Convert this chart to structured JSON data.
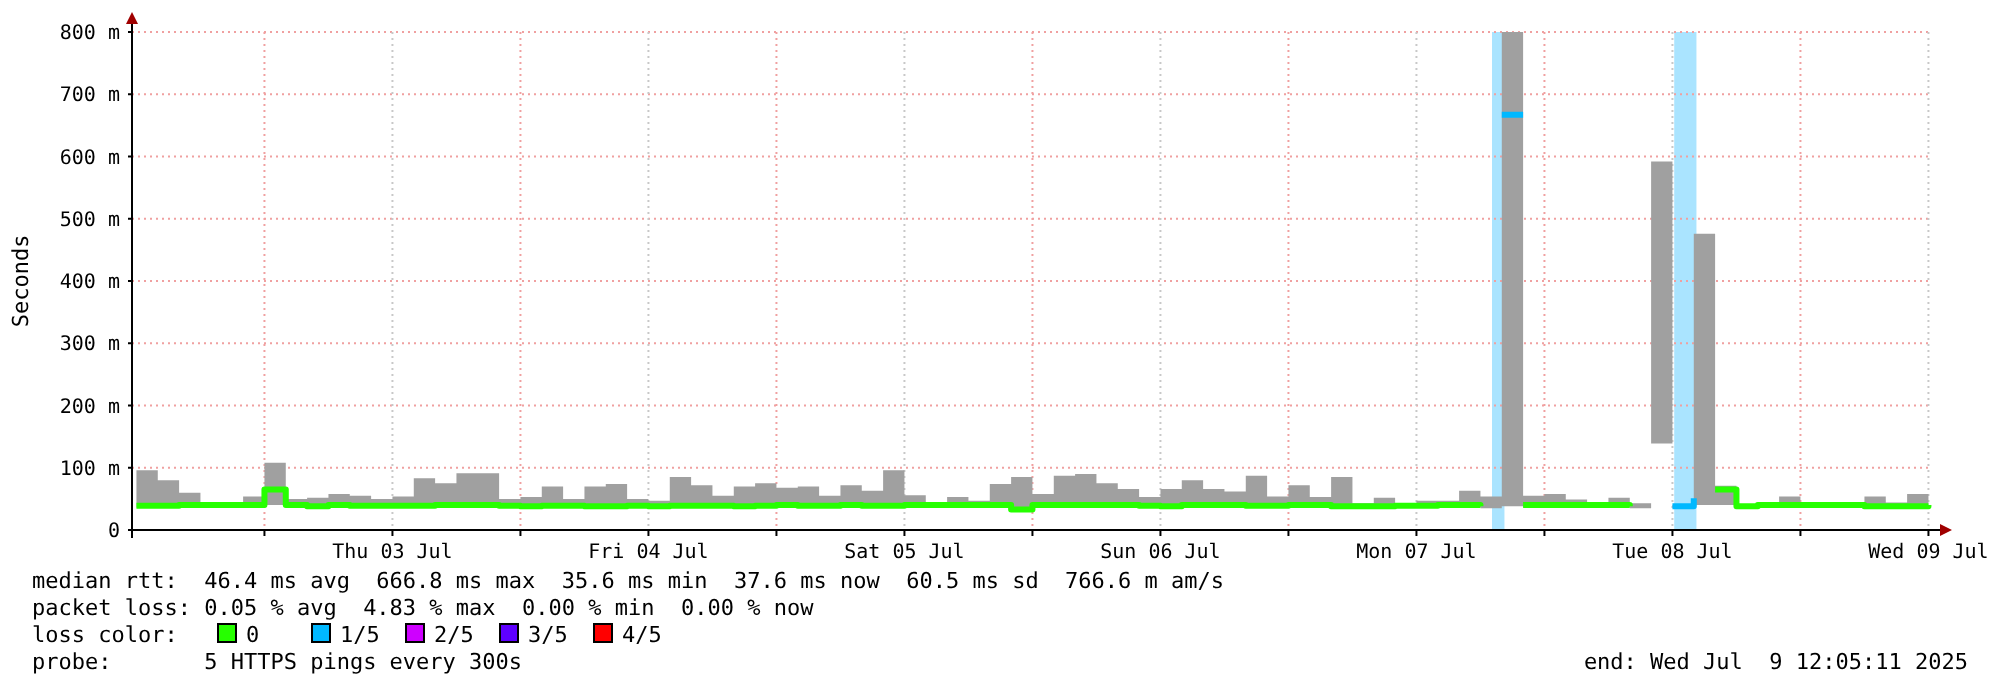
{
  "chart_data": {
    "type": "step",
    "ylabel": "Seconds",
    "xlim": [
      "2025-07-02T11:35",
      "2025-07-09T12:20"
    ],
    "xticks": [
      {
        "value": "2025-07-03T00:00",
        "label": null
      },
      {
        "value": "2025-07-03T12:00",
        "label": "Thu 03 Jul"
      },
      {
        "value": "2025-07-04T00:00",
        "label": null
      },
      {
        "value": "2025-07-04T12:00",
        "label": "Fri 04 Jul"
      },
      {
        "value": "2025-07-05T00:00",
        "label": null
      },
      {
        "value": "2025-07-05T12:00",
        "label": "Sat 05 Jul"
      },
      {
        "value": "2025-07-06T00:00",
        "label": null
      },
      {
        "value": "2025-07-06T12:00",
        "label": "Sun 06 Jul"
      },
      {
        "value": "2025-07-07T00:00",
        "label": null
      },
      {
        "value": "2025-07-07T12:00",
        "label": "Mon 07 Jul"
      },
      {
        "value": "2025-07-08T00:00",
        "label": null
      },
      {
        "value": "2025-07-08T12:00",
        "label": "Tue 08 Jul"
      },
      {
        "value": "2025-07-09T00:00",
        "label": null
      },
      {
        "value": "2025-07-09T12:00",
        "label": "Wed 09 Jul"
      }
    ],
    "ylim": [
      0,
      800
    ],
    "yticks": [
      0,
      {
        "value": 100,
        "label": "100 m"
      },
      {
        "value": 200,
        "label": "200 m"
      },
      {
        "value": 300,
        "label": "300 m"
      },
      {
        "value": 400,
        "label": "400 m"
      },
      {
        "value": 500,
        "label": "500 m"
      },
      {
        "value": 600,
        "label": "600 m"
      },
      {
        "value": 700,
        "label": "700 m"
      },
      {
        "value": 800,
        "label": "800 m"
      }
    ],
    "grid": true,
    "legend": "bottom",
    "legend_title": "loss color:",
    "x": [
      "2025-07-02T12:00",
      "2025-07-02T14:00",
      "2025-07-02T16:00",
      "2025-07-02T18:00",
      "2025-07-02T20:00",
      "2025-07-02T22:00",
      "2025-07-03T00:00",
      "2025-07-03T02:00",
      "2025-07-03T04:00",
      "2025-07-03T06:00",
      "2025-07-03T08:00",
      "2025-07-03T10:00",
      "2025-07-03T12:00",
      "2025-07-03T14:00",
      "2025-07-03T16:00",
      "2025-07-03T18:00",
      "2025-07-03T20:00",
      "2025-07-03T22:00",
      "2025-07-04T00:00",
      "2025-07-04T02:00",
      "2025-07-04T04:00",
      "2025-07-04T06:00",
      "2025-07-04T08:00",
      "2025-07-04T10:00",
      "2025-07-04T12:00",
      "2025-07-04T14:00",
      "2025-07-04T16:00",
      "2025-07-04T18:00",
      "2025-07-04T20:00",
      "2025-07-04T22:00",
      "2025-07-05T00:00",
      "2025-07-05T02:00",
      "2025-07-05T04:00",
      "2025-07-05T06:00",
      "2025-07-05T08:00",
      "2025-07-05T10:00",
      "2025-07-05T12:00",
      "2025-07-05T14:00",
      "2025-07-05T16:00",
      "2025-07-05T18:00",
      "2025-07-05T20:00",
      "2025-07-05T22:00",
      "2025-07-06T00:00",
      "2025-07-06T02:00",
      "2025-07-06T04:00",
      "2025-07-06T06:00",
      "2025-07-06T08:00",
      "2025-07-06T10:00",
      "2025-07-06T12:00",
      "2025-07-06T14:00",
      "2025-07-06T16:00",
      "2025-07-06T18:00",
      "2025-07-06T20:00",
      "2025-07-06T22:00",
      "2025-07-07T00:00",
      "2025-07-07T02:00",
      "2025-07-07T04:00",
      "2025-07-07T06:00",
      "2025-07-07T08:00",
      "2025-07-07T10:00",
      "2025-07-07T12:00",
      "2025-07-07T14:00",
      "2025-07-07T16:00",
      "2025-07-07T18:00",
      "2025-07-07T20:00",
      "2025-07-07T22:00",
      "2025-07-08T00:00",
      "2025-07-08T02:00",
      "2025-07-08T04:00",
      "2025-07-08T06:00",
      "2025-07-08T08:00",
      "2025-07-08T10:00",
      "2025-07-08T12:00",
      "2025-07-08T14:00",
      "2025-07-08T16:00",
      "2025-07-08T18:00",
      "2025-07-08T20:00",
      "2025-07-08T22:00",
      "2025-07-09T00:00",
      "2025-07-09T02:00",
      "2025-07-09T04:00",
      "2025-07-09T06:00",
      "2025-07-09T08:00",
      "2025-07-09T10:00",
      "2025-07-09T12:00"
    ],
    "series": [
      {
        "name": "0",
        "color": "#26ff00",
        "values": [
          39,
          39,
          40,
          40,
          40,
          40,
          65,
          40,
          38,
          40,
          39,
          39,
          39,
          39,
          40,
          40,
          40,
          39,
          38,
          39,
          39,
          38,
          38,
          39,
          38,
          39,
          39,
          39,
          38,
          39,
          40,
          39,
          39,
          40,
          39,
          39,
          40,
          40,
          40,
          40,
          40,
          33,
          40,
          40,
          40,
          40,
          40,
          39,
          38,
          40,
          40,
          40,
          39,
          39,
          40,
          40,
          38,
          38,
          38,
          39,
          39,
          40,
          40,
          38,
          null,
          40,
          40,
          40,
          40,
          40,
          38,
          null,
          null,
          null,
          65,
          38,
          40,
          40,
          40,
          40,
          40,
          38,
          38,
          38,
          40
        ],
        "lower": [
          36,
          36,
          37,
          37,
          37,
          37,
          40,
          37,
          35,
          37,
          36,
          36,
          36,
          36,
          37,
          37,
          37,
          36,
          35,
          36,
          36,
          35,
          35,
          36,
          35,
          36,
          36,
          36,
          35,
          36,
          37,
          36,
          36,
          37,
          36,
          36,
          37,
          37,
          37,
          37,
          37,
          31,
          37,
          37,
          37,
          37,
          37,
          36,
          35,
          37,
          37,
          37,
          36,
          36,
          37,
          37,
          35,
          35,
          35,
          36,
          36,
          37,
          37,
          35,
          38,
          37,
          37,
          37,
          37,
          37,
          35,
          139,
          36,
          40,
          40,
          36,
          38,
          38,
          38,
          38,
          38,
          36,
          36,
          36,
          38
        ],
        "upper": [
          96,
          80,
          60,
          43,
          43,
          54,
          108,
          50,
          52,
          58,
          55,
          50,
          54,
          83,
          75,
          91,
          91,
          50,
          53,
          70,
          50,
          70,
          74,
          50,
          47,
          85,
          72,
          55,
          70,
          75,
          68,
          70,
          55,
          72,
          63,
          96,
          56,
          43,
          53,
          47,
          74,
          85,
          58,
          87,
          90,
          75,
          66,
          53,
          66,
          80,
          66,
          62,
          87,
          54,
          72,
          53,
          85,
          43,
          52,
          40,
          47,
          47,
          63,
          54,
          800,
          55,
          58,
          49,
          43,
          52,
          43,
          592,
          40,
          476,
          71,
          40,
          42,
          54,
          42,
          42,
          42,
          54,
          44,
          58,
          42
        ]
      },
      {
        "name": "1/5",
        "color": "#00b8ff",
        "values": [
          null,
          null,
          null,
          null,
          null,
          null,
          null,
          null,
          null,
          null,
          null,
          null,
          null,
          null,
          null,
          null,
          null,
          null,
          null,
          null,
          null,
          null,
          null,
          null,
          null,
          null,
          null,
          null,
          null,
          null,
          null,
          null,
          null,
          null,
          null,
          null,
          null,
          null,
          null,
          null,
          null,
          null,
          null,
          null,
          null,
          null,
          null,
          null,
          null,
          null,
          null,
          null,
          null,
          null,
          null,
          null,
          null,
          null,
          null,
          null,
          null,
          null,
          null,
          null,
          667,
          null,
          null,
          null,
          null,
          null,
          null,
          null,
          38,
          51,
          null,
          null,
          null,
          null,
          null,
          null,
          null,
          null,
          null,
          null,
          null
        ]
      },
      {
        "name": "2/5",
        "color": "#ce00ff",
        "values": [
          null,
          null,
          null,
          null,
          null,
          null,
          null,
          null,
          null,
          null,
          null,
          null,
          null,
          null,
          null,
          null,
          null,
          null,
          null,
          null,
          null,
          null,
          null,
          null,
          null,
          null,
          null,
          null,
          null,
          null,
          null,
          null,
          null,
          null,
          null,
          null,
          null,
          null,
          null,
          null,
          null,
          null,
          null,
          null,
          null,
          null,
          null,
          null,
          null,
          null,
          null,
          null,
          null,
          null,
          null,
          null,
          null,
          null,
          null,
          null,
          null,
          null,
          null,
          null,
          null,
          null,
          null,
          null,
          null,
          null,
          null,
          null,
          null,
          null,
          null,
          null,
          null,
          null,
          null,
          null,
          null,
          null,
          null,
          null,
          null
        ]
      },
      {
        "name": "3/5",
        "color": "#5e00ff",
        "values": [
          null,
          null,
          null,
          null,
          null,
          null,
          null,
          null,
          null,
          null,
          null,
          null,
          null,
          null,
          null,
          null,
          null,
          null,
          null,
          null,
          null,
          null,
          null,
          null,
          null,
          null,
          null,
          null,
          null,
          null,
          null,
          null,
          null,
          null,
          null,
          null,
          null,
          null,
          null,
          null,
          null,
          null,
          null,
          null,
          null,
          null,
          null,
          null,
          null,
          null,
          null,
          null,
          null,
          null,
          null,
          null,
          null,
          null,
          null,
          null,
          null,
          null,
          null,
          null,
          null,
          null,
          null,
          null,
          null,
          null,
          null,
          null,
          null,
          null,
          null,
          null,
          null,
          null,
          null,
          null,
          null,
          null,
          null,
          null,
          null
        ]
      },
      {
        "name": "4/5",
        "color": "#ff0000",
        "values": [
          null,
          null,
          null,
          null,
          null,
          null,
          null,
          null,
          null,
          null,
          null,
          null,
          null,
          null,
          null,
          null,
          null,
          null,
          null,
          null,
          null,
          null,
          null,
          null,
          null,
          null,
          null,
          null,
          null,
          null,
          null,
          null,
          null,
          null,
          null,
          null,
          null,
          null,
          null,
          null,
          null,
          null,
          null,
          null,
          null,
          null,
          null,
          null,
          null,
          null,
          null,
          null,
          null,
          null,
          null,
          null,
          null,
          null,
          null,
          null,
          null,
          null,
          null,
          null,
          null,
          null,
          null,
          null,
          null,
          null,
          null,
          null,
          null,
          null,
          null,
          null,
          null,
          null,
          null,
          null,
          null,
          null,
          null,
          null,
          null
        ]
      }
    ],
    "bands": [
      {
        "axis": "x",
        "from": "2025-07-07T19:05",
        "to": "2025-07-07T20:15",
        "color": "#aae4ff"
      },
      {
        "axis": "x",
        "from": "2025-07-08T12:10",
        "to": "2025-07-08T14:15",
        "color": "#aae4ff"
      }
    ],
    "annotations": [
      "median rtt:  46.4 ms avg  666.8 ms max  35.6 ms min  37.6 ms now  60.5 ms sd  766.6 m am/s",
      "packet loss: 0.05 % avg  4.83 % max  0.00 % min  0.00 % now",
      "probe:       5 HTTPS pings every 300s",
      "end: Wed Jul  9 12:05:11 2025"
    ]
  }
}
